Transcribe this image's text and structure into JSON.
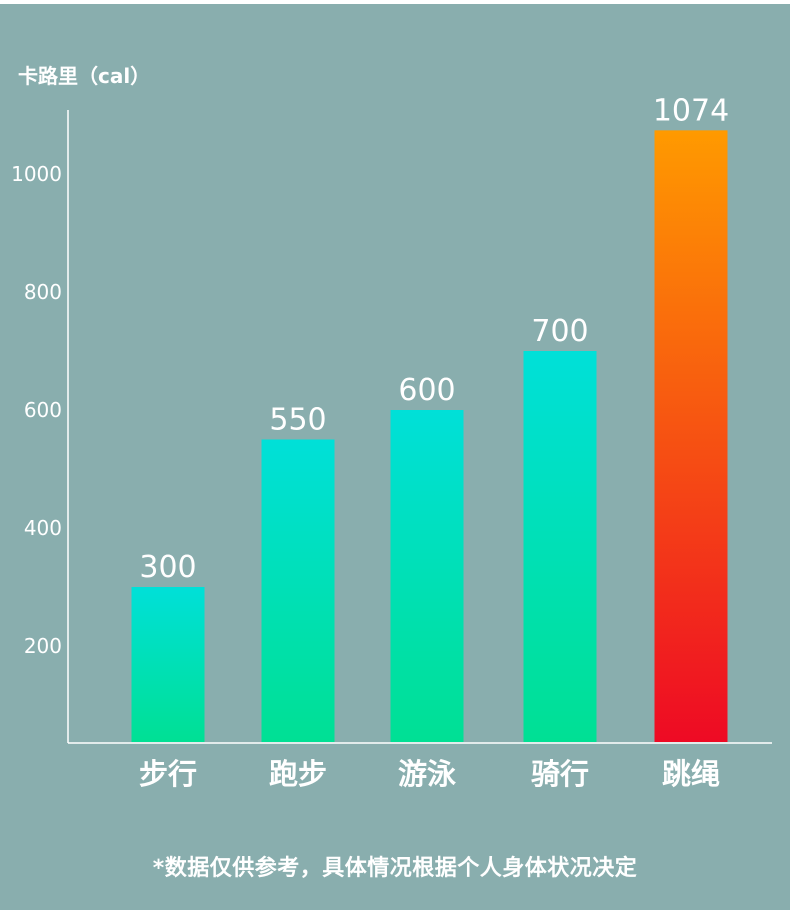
{
  "chart_data": {
    "type": "bar",
    "ylabel": "卡路里（cal）",
    "categories": [
      "步行",
      "跑步",
      "游泳",
      "骑行",
      "跳绳"
    ],
    "values": [
      300,
      550,
      600,
      700,
      1074
    ],
    "value_labels": [
      "300",
      "550",
      "600",
      "700",
      "1074"
    ],
    "yticks": [
      200,
      400,
      600,
      800,
      1000
    ],
    "grid": false,
    "colors": {
      "normal_top": "#00e0d8",
      "normal_bottom": "#00e094",
      "highlight_top": "#ff9a00",
      "highlight_bottom": "#ee0a24",
      "background": "#89aeae",
      "text": "#ffffff"
    },
    "highlight_index": 4
  },
  "footnote": "*数据仅供参考，具体情况根据个人身体状况决定"
}
